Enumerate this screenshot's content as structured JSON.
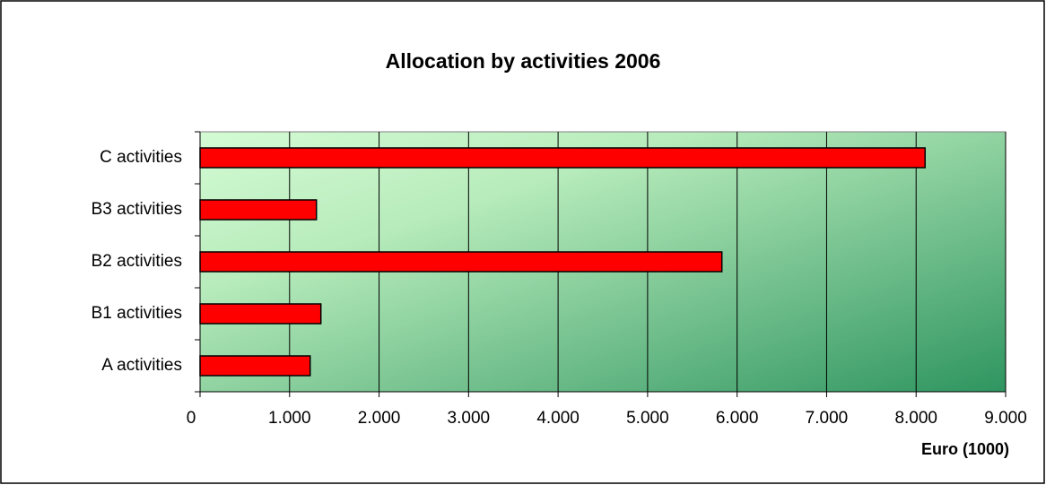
{
  "chart_data": {
    "type": "bar",
    "orientation": "horizontal",
    "title": "Allocation by activities 2006",
    "xlabel": "Euro (1000)",
    "categories": [
      "A activities",
      "B1 activities",
      "B2 activities",
      "B3 activities",
      "C activities"
    ],
    "values": [
      1230,
      1350,
      5830,
      1300,
      8100
    ],
    "color": "#ff0000",
    "xlim": [
      0,
      9000
    ],
    "xticks": [
      0,
      {
        "value": 1000,
        "label": "1.000"
      },
      {
        "value": 2000,
        "label": "2.000"
      },
      {
        "value": 3000,
        "label": "3.000"
      },
      {
        "value": 4000,
        "label": "4.000"
      },
      {
        "value": 5000,
        "label": "5.000"
      },
      {
        "value": 6000,
        "label": "6.000"
      },
      {
        "value": 7000,
        "label": "7.000"
      },
      {
        "value": 8000,
        "label": "8.000"
      },
      {
        "value": 9000,
        "label": "9.000"
      }
    ],
    "grid": true
  }
}
